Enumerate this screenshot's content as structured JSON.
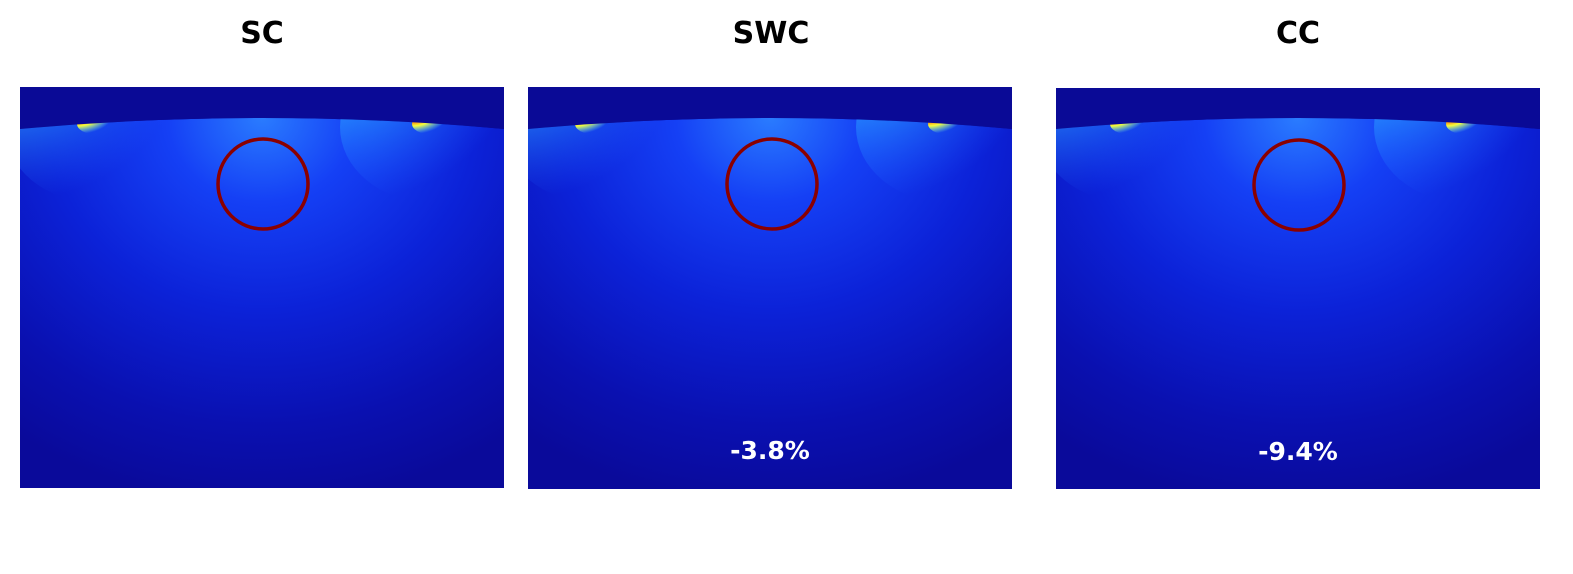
{
  "panels": [
    {
      "title": "SC",
      "value": ""
    },
    {
      "title": "SWC",
      "value": "-3.8%"
    },
    {
      "title": "CC",
      "value": "-9.4%"
    }
  ],
  "colors": {
    "background_top": "#0a0a96",
    "field_deep": "#0a0aa0",
    "field_mid": "#1020e6",
    "field_bright": "#2a8cff",
    "hotspot_core": "#e01a00",
    "hotspot_halo": "#f0ff40",
    "inclusion_outline": "#8b0000",
    "label_text": "#ffffff"
  }
}
